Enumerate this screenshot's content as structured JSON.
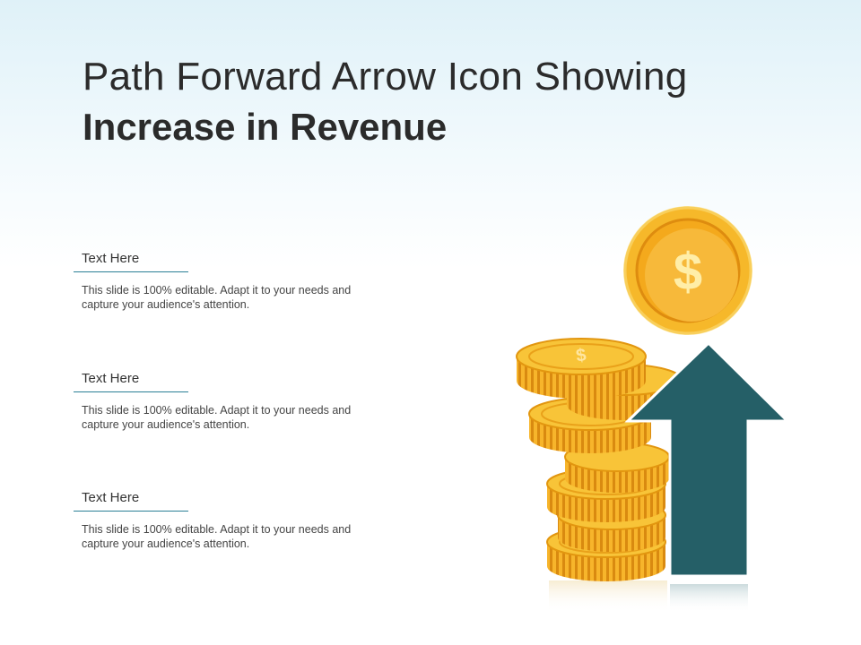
{
  "title": {
    "line1": "Path Forward Arrow Icon Showing",
    "line2": "Increase in Revenue"
  },
  "items": [
    {
      "heading": "Text Here",
      "body": "This slide is 100% editable. Adapt it to your needs and capture your audience's attention."
    },
    {
      "heading": "Text Here",
      "body": "This slide is 100% editable. Adapt it to your needs and capture your audience's attention."
    },
    {
      "heading": "Text Here",
      "body": "This slide is 100% editable. Adapt it to your needs and capture your audience's attention."
    }
  ],
  "graphic": {
    "coin_symbol": "$",
    "icons": [
      "coin-stack-icon",
      "dollar-coin-icon",
      "up-arrow-icon"
    ],
    "colors": {
      "coin_gold": "#f6b82a",
      "coin_dark": "#e69412",
      "arrow": "#255f67",
      "accent_line": "#2a7f95"
    }
  }
}
